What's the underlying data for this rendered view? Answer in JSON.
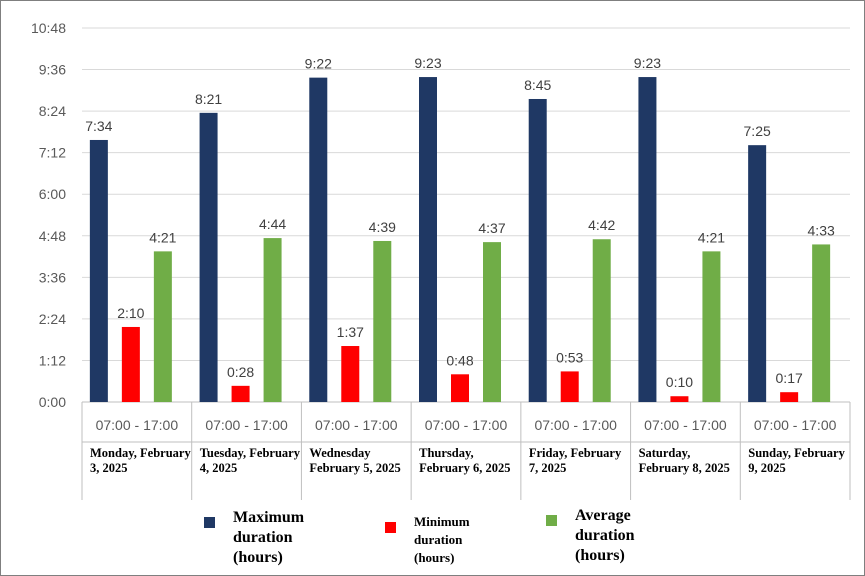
{
  "chart_data": {
    "type": "bar",
    "categories": [
      {
        "time": "07:00 - 17:00",
        "day": "Monday, February 3, 2025"
      },
      {
        "time": "07:00 - 17:00",
        "day": "Tuesday, February 4, 2025"
      },
      {
        "time": "07:00 - 17:00",
        "day": "Wednesday February 5, 2025"
      },
      {
        "time": "07:00 - 17:00",
        "day": "Thursday, February 6, 2025"
      },
      {
        "time": "07:00 - 17:00",
        "day": "Friday, February 7, 2025"
      },
      {
        "time": "07:00 - 17:00",
        "day": "Saturday, February 8, 2025"
      },
      {
        "time": "07:00 - 17:00",
        "day": "Sunday, February 9, 2025"
      }
    ],
    "y_ticks": [
      "0:00",
      "1:12",
      "2:24",
      "3:36",
      "4:48",
      "6:00",
      "7:12",
      "8:24",
      "9:36",
      "10:48"
    ],
    "ylim_minutes": [
      0,
      648
    ],
    "grid": true,
    "legend_position": "bottom",
    "series": [
      {
        "name": "Maximum duration (hours)",
        "color": "#1f3864",
        "labels": [
          "7:34",
          "8:21",
          "9:22",
          "9:23",
          "8:45",
          "9:23",
          "7:25"
        ],
        "values_minutes": [
          454,
          501,
          562,
          563,
          525,
          563,
          445
        ]
      },
      {
        "name": "Minimum duration (hours)",
        "color": "#ff0000",
        "labels": [
          "2:10",
          "0:28",
          "1:37",
          "0:48",
          "0:53",
          "0:10",
          "0:17"
        ],
        "values_minutes": [
          130,
          28,
          97,
          48,
          53,
          10,
          17
        ]
      },
      {
        "name": "Average duration (hours)",
        "color": "#70ad47",
        "labels": [
          "4:21",
          "4:44",
          "4:39",
          "4:37",
          "4:42",
          "4:21",
          "4:33"
        ],
        "values_minutes": [
          261,
          284,
          279,
          277,
          282,
          261,
          273
        ]
      }
    ]
  }
}
